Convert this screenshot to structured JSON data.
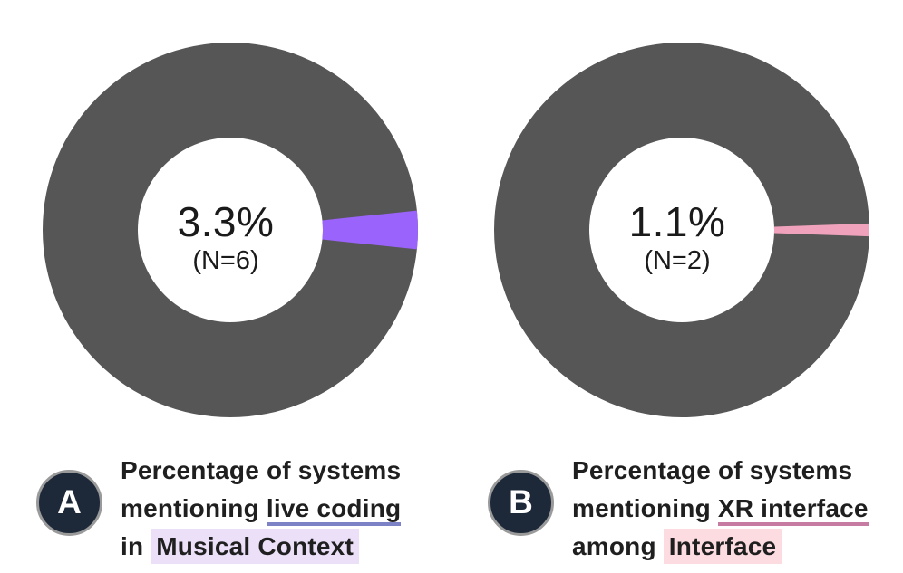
{
  "colors": {
    "background": "#ffffff",
    "donut_remainder": "#575656",
    "text_primary": "#1f1f1f",
    "badge_fill": "#1d2939",
    "badge_border": "#9a9a9a",
    "badge_letter": "#ffffff"
  },
  "chart_data": [
    {
      "type": "pie",
      "subtype": "donut",
      "panel_badge": "A",
      "title": "Percentage of systems mentioning live coding in Musical Context",
      "categories": [
        "live coding",
        "remainder"
      ],
      "values": [
        3.3,
        96.7
      ],
      "unit": "percent",
      "n_highlighted": 6,
      "center_labels": {
        "percent": "3.3%",
        "n": "(N=6)"
      },
      "slice_color": "#9a63fb",
      "remainder_color": "#575656",
      "slice_center_angle_deg": 0,
      "legend": "none",
      "caption": {
        "line1": "Percentage of systems",
        "line2_prefix": "mentioning ",
        "line2_term": "live coding",
        "line3_prefix": "in ",
        "line3_term": "Musical Context",
        "term_underline_color": "#7c82c5",
        "term_highlight_color": "#ece0f9"
      }
    },
    {
      "type": "pie",
      "subtype": "donut",
      "panel_badge": "B",
      "title": "Percentage of systems mentioning XR interface among Interface",
      "categories": [
        "XR interface",
        "remainder"
      ],
      "values": [
        1.1,
        98.9
      ],
      "unit": "percent",
      "n_highlighted": 2,
      "center_labels": {
        "percent": "1.1%",
        "n": "(N=2)"
      },
      "slice_color": "#f0a2bd",
      "remainder_color": "#575656",
      "slice_center_angle_deg": 0,
      "legend": "none",
      "caption": {
        "line1": "Percentage of systems",
        "line2_prefix": "mentioning ",
        "line2_term": "XR interface",
        "line3_prefix": "among ",
        "line3_term": "Interface",
        "term_underline_color": "#c67ba3",
        "term_highlight_color": "#fcdce1"
      }
    }
  ]
}
